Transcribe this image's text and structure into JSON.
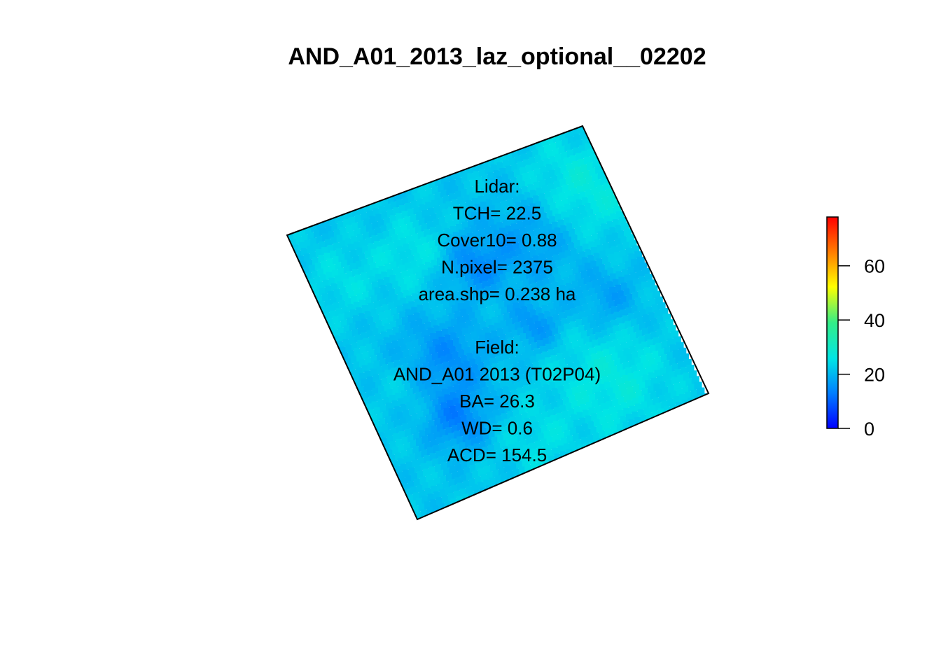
{
  "chart_data": {
    "type": "heatmap",
    "title": "AND_A01_2013_laz_optional__02202",
    "lidar_annotation": [
      "Lidar:",
      "TCH= 22.5",
      "Cover10= 0.88",
      "N.pixel= 2375",
      "area.shp= 0.238 ha"
    ],
    "field_annotation": [
      "Field:",
      "AND_A01 2013 (T02P04)",
      "BA= 26.3",
      "WD= 0.6",
      "ACD= 154.5"
    ],
    "colorbar": {
      "range": [
        0,
        78
      ],
      "ticks": [
        0,
        20,
        40,
        60
      ],
      "tick_labels": [
        "0",
        "20",
        "40",
        "60"
      ],
      "palette": [
        "#0000ff",
        "#0080ff",
        "#00e5e5",
        "#33ee88",
        "#ffff00",
        "#ff8000",
        "#ff0000"
      ]
    },
    "grid": "off",
    "axes": "none"
  }
}
